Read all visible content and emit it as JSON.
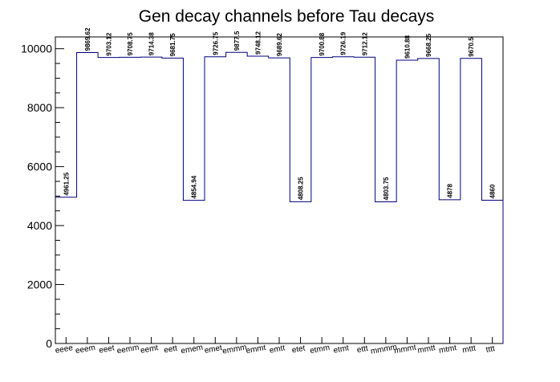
{
  "chart_data": {
    "type": "bar",
    "style": "step-histogram",
    "title": "Gen decay channels before Tau decays",
    "xlabel": "",
    "ylabel": "",
    "ylim": [
      0,
      10400
    ],
    "yticks": [
      0,
      2000,
      4000,
      6000,
      8000,
      10000
    ],
    "grid": false,
    "line_color": "#00007f",
    "categories": [
      "eeee",
      "eeem",
      "eeet",
      "eemm",
      "eemt",
      "eett",
      "emem",
      "emet",
      "emmm",
      "emmt",
      "emtt",
      "etet",
      "etmm",
      "etmt",
      "ettt",
      "mmmm",
      "mmmt",
      "mmtt",
      "mtmt",
      "mttt",
      "tttt"
    ],
    "values": [
      4961.25,
      9869.62,
      9703.12,
      9708.75,
      9714.38,
      9681.75,
      4854.94,
      9726.75,
      9877.5,
      9748.12,
      9689.62,
      4808.25,
      9700.88,
      9726.19,
      9712.12,
      4803.75,
      9610.88,
      9668.25,
      4878,
      9670.5,
      4860
    ],
    "value_labels": [
      "4961.25",
      "9869.62",
      "9703.12",
      "9708.75",
      "9714.38",
      "9681.75",
      "4854.94",
      "9726.75",
      "9877.5",
      "9748.12",
      "9689.62",
      "4808.25",
      "9700.88",
      "9726.19",
      "9712.12",
      "4803.75",
      "9610.88",
      "9668.25",
      "4878",
      "9670.5",
      "4860"
    ]
  }
}
